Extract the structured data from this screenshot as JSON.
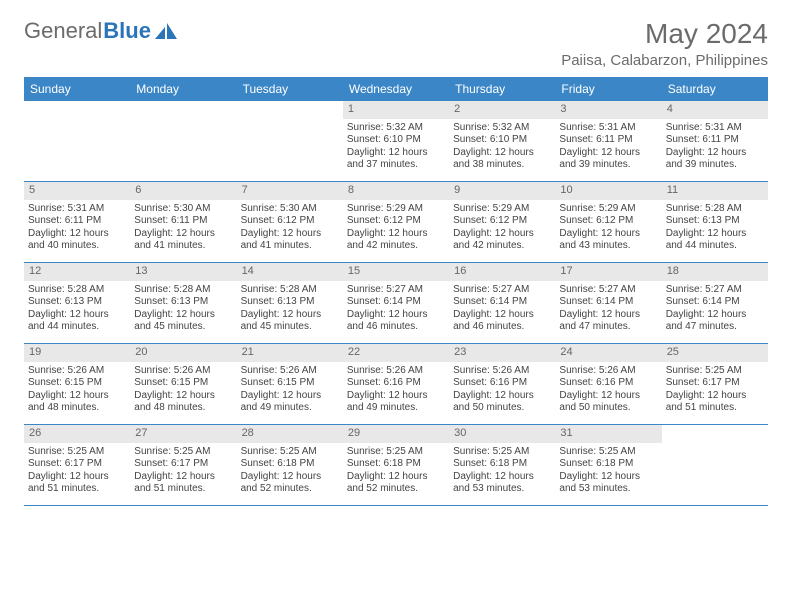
{
  "logo": {
    "text1": "General",
    "text2": "Blue"
  },
  "title": "May 2024",
  "location": "Paiisa, Calabarzon, Philippines",
  "colors": {
    "header_bg": "#3b86c7",
    "header_text": "#ffffff",
    "daynum_bg": "#e8e8e8",
    "border": "#3b86c7",
    "body_text": "#444444",
    "title_text": "#6b6b6b"
  },
  "day_names": [
    "Sunday",
    "Monday",
    "Tuesday",
    "Wednesday",
    "Thursday",
    "Friday",
    "Saturday"
  ],
  "weeks": [
    [
      null,
      null,
      null,
      {
        "n": "1",
        "sr": "Sunrise: 5:32 AM",
        "ss": "Sunset: 6:10 PM",
        "d1": "Daylight: 12 hours",
        "d2": "and 37 minutes."
      },
      {
        "n": "2",
        "sr": "Sunrise: 5:32 AM",
        "ss": "Sunset: 6:10 PM",
        "d1": "Daylight: 12 hours",
        "d2": "and 38 minutes."
      },
      {
        "n": "3",
        "sr": "Sunrise: 5:31 AM",
        "ss": "Sunset: 6:11 PM",
        "d1": "Daylight: 12 hours",
        "d2": "and 39 minutes."
      },
      {
        "n": "4",
        "sr": "Sunrise: 5:31 AM",
        "ss": "Sunset: 6:11 PM",
        "d1": "Daylight: 12 hours",
        "d2": "and 39 minutes."
      }
    ],
    [
      {
        "n": "5",
        "sr": "Sunrise: 5:31 AM",
        "ss": "Sunset: 6:11 PM",
        "d1": "Daylight: 12 hours",
        "d2": "and 40 minutes."
      },
      {
        "n": "6",
        "sr": "Sunrise: 5:30 AM",
        "ss": "Sunset: 6:11 PM",
        "d1": "Daylight: 12 hours",
        "d2": "and 41 minutes."
      },
      {
        "n": "7",
        "sr": "Sunrise: 5:30 AM",
        "ss": "Sunset: 6:12 PM",
        "d1": "Daylight: 12 hours",
        "d2": "and 41 minutes."
      },
      {
        "n": "8",
        "sr": "Sunrise: 5:29 AM",
        "ss": "Sunset: 6:12 PM",
        "d1": "Daylight: 12 hours",
        "d2": "and 42 minutes."
      },
      {
        "n": "9",
        "sr": "Sunrise: 5:29 AM",
        "ss": "Sunset: 6:12 PM",
        "d1": "Daylight: 12 hours",
        "d2": "and 42 minutes."
      },
      {
        "n": "10",
        "sr": "Sunrise: 5:29 AM",
        "ss": "Sunset: 6:12 PM",
        "d1": "Daylight: 12 hours",
        "d2": "and 43 minutes."
      },
      {
        "n": "11",
        "sr": "Sunrise: 5:28 AM",
        "ss": "Sunset: 6:13 PM",
        "d1": "Daylight: 12 hours",
        "d2": "and 44 minutes."
      }
    ],
    [
      {
        "n": "12",
        "sr": "Sunrise: 5:28 AM",
        "ss": "Sunset: 6:13 PM",
        "d1": "Daylight: 12 hours",
        "d2": "and 44 minutes."
      },
      {
        "n": "13",
        "sr": "Sunrise: 5:28 AM",
        "ss": "Sunset: 6:13 PM",
        "d1": "Daylight: 12 hours",
        "d2": "and 45 minutes."
      },
      {
        "n": "14",
        "sr": "Sunrise: 5:28 AM",
        "ss": "Sunset: 6:13 PM",
        "d1": "Daylight: 12 hours",
        "d2": "and 45 minutes."
      },
      {
        "n": "15",
        "sr": "Sunrise: 5:27 AM",
        "ss": "Sunset: 6:14 PM",
        "d1": "Daylight: 12 hours",
        "d2": "and 46 minutes."
      },
      {
        "n": "16",
        "sr": "Sunrise: 5:27 AM",
        "ss": "Sunset: 6:14 PM",
        "d1": "Daylight: 12 hours",
        "d2": "and 46 minutes."
      },
      {
        "n": "17",
        "sr": "Sunrise: 5:27 AM",
        "ss": "Sunset: 6:14 PM",
        "d1": "Daylight: 12 hours",
        "d2": "and 47 minutes."
      },
      {
        "n": "18",
        "sr": "Sunrise: 5:27 AM",
        "ss": "Sunset: 6:14 PM",
        "d1": "Daylight: 12 hours",
        "d2": "and 47 minutes."
      }
    ],
    [
      {
        "n": "19",
        "sr": "Sunrise: 5:26 AM",
        "ss": "Sunset: 6:15 PM",
        "d1": "Daylight: 12 hours",
        "d2": "and 48 minutes."
      },
      {
        "n": "20",
        "sr": "Sunrise: 5:26 AM",
        "ss": "Sunset: 6:15 PM",
        "d1": "Daylight: 12 hours",
        "d2": "and 48 minutes."
      },
      {
        "n": "21",
        "sr": "Sunrise: 5:26 AM",
        "ss": "Sunset: 6:15 PM",
        "d1": "Daylight: 12 hours",
        "d2": "and 49 minutes."
      },
      {
        "n": "22",
        "sr": "Sunrise: 5:26 AM",
        "ss": "Sunset: 6:16 PM",
        "d1": "Daylight: 12 hours",
        "d2": "and 49 minutes."
      },
      {
        "n": "23",
        "sr": "Sunrise: 5:26 AM",
        "ss": "Sunset: 6:16 PM",
        "d1": "Daylight: 12 hours",
        "d2": "and 50 minutes."
      },
      {
        "n": "24",
        "sr": "Sunrise: 5:26 AM",
        "ss": "Sunset: 6:16 PM",
        "d1": "Daylight: 12 hours",
        "d2": "and 50 minutes."
      },
      {
        "n": "25",
        "sr": "Sunrise: 5:25 AM",
        "ss": "Sunset: 6:17 PM",
        "d1": "Daylight: 12 hours",
        "d2": "and 51 minutes."
      }
    ],
    [
      {
        "n": "26",
        "sr": "Sunrise: 5:25 AM",
        "ss": "Sunset: 6:17 PM",
        "d1": "Daylight: 12 hours",
        "d2": "and 51 minutes."
      },
      {
        "n": "27",
        "sr": "Sunrise: 5:25 AM",
        "ss": "Sunset: 6:17 PM",
        "d1": "Daylight: 12 hours",
        "d2": "and 51 minutes."
      },
      {
        "n": "28",
        "sr": "Sunrise: 5:25 AM",
        "ss": "Sunset: 6:18 PM",
        "d1": "Daylight: 12 hours",
        "d2": "and 52 minutes."
      },
      {
        "n": "29",
        "sr": "Sunrise: 5:25 AM",
        "ss": "Sunset: 6:18 PM",
        "d1": "Daylight: 12 hours",
        "d2": "and 52 minutes."
      },
      {
        "n": "30",
        "sr": "Sunrise: 5:25 AM",
        "ss": "Sunset: 6:18 PM",
        "d1": "Daylight: 12 hours",
        "d2": "and 53 minutes."
      },
      {
        "n": "31",
        "sr": "Sunrise: 5:25 AM",
        "ss": "Sunset: 6:18 PM",
        "d1": "Daylight: 12 hours",
        "d2": "and 53 minutes."
      },
      null
    ]
  ]
}
